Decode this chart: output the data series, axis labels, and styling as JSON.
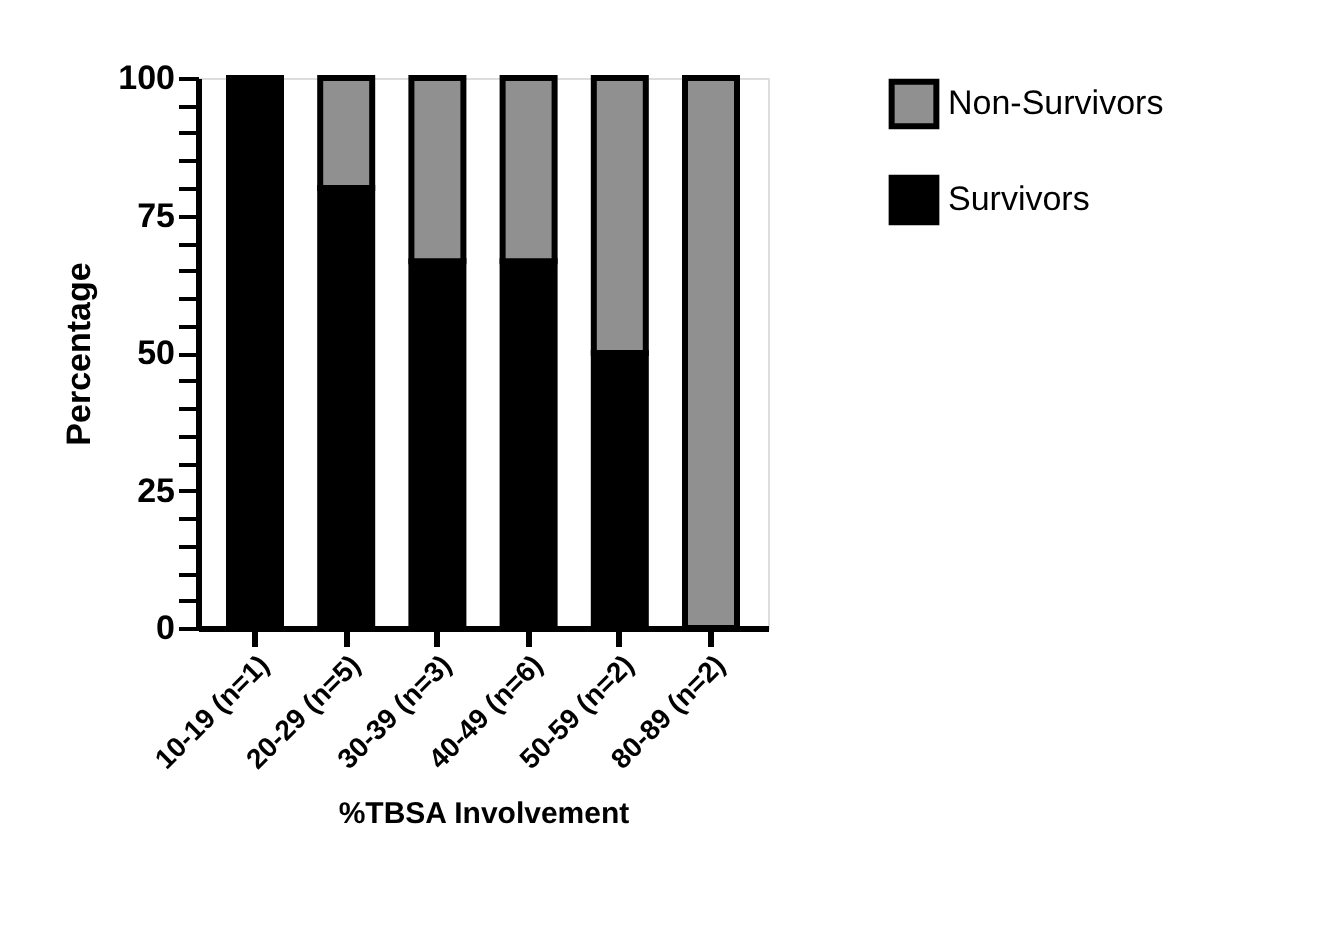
{
  "chart_data": {
    "type": "bar",
    "stacked": true,
    "xlabel": "%TBSA Involvement",
    "ylabel": "Percentage",
    "categories": [
      "10-19 (n=1)",
      "20-29 (n=5)",
      "30-39 (n=3)",
      "40-49 (n=6)",
      "50-59 (n=2)",
      "80-89 (n=2)"
    ],
    "series": [
      {
        "name": "Survivors",
        "color": "#000000",
        "values": [
          100,
          80,
          66.7,
          66.7,
          50,
          0
        ]
      },
      {
        "name": "Non-Survivors",
        "color": "#909090",
        "values": [
          0,
          20,
          33.3,
          33.3,
          50,
          100
        ]
      }
    ],
    "ylim": [
      0,
      100
    ],
    "yticks": [
      0,
      {
        "value": 5,
        "label": null
      },
      {
        "value": 10,
        "label": null
      },
      {
        "value": 15,
        "label": null
      },
      {
        "value": 20,
        "label": null
      },
      25,
      {
        "value": 30,
        "label": null
      },
      {
        "value": 35,
        "label": null
      },
      {
        "value": 40,
        "label": null
      },
      {
        "value": 45,
        "label": null
      },
      50,
      {
        "value": 55,
        "label": null
      },
      {
        "value": 60,
        "label": null
      },
      {
        "value": 65,
        "label": null
      },
      {
        "value": 70,
        "label": null
      },
      75,
      {
        "value": 80,
        "label": null
      },
      {
        "value": 85,
        "label": null
      },
      {
        "value": 90,
        "label": null
      },
      {
        "value": 95,
        "label": null
      },
      100
    ],
    "legend": "top right",
    "grid": false
  }
}
